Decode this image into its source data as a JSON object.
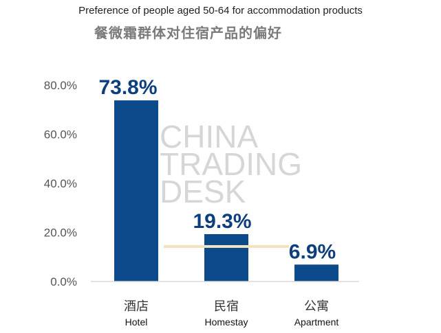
{
  "title": "Preference of people aged 50-64 for accommodation products",
  "subtitle": "餐微霜群体对住宿产品的偏好",
  "watermark": [
    "CHINA",
    "TRADING",
    "DESK"
  ],
  "colors": {
    "bar": "#0d4a8b",
    "label": "#0d3f7d",
    "baseline": "#d9d9d9",
    "accent_line": "#f3e2c0"
  },
  "chart_data": {
    "type": "bar",
    "title": "Preference of people aged 50-64 for accommodation products",
    "subtitle": "餐微霜群体对住宿产品的偏好",
    "categories": [
      "酒店",
      "民宿",
      "公寓"
    ],
    "categories_en": [
      "Hotel",
      "Homestay",
      "Apartment"
    ],
    "values": [
      73.8,
      19.3,
      6.9
    ],
    "value_labels": [
      "73.8%",
      "19.3%",
      "6.9%"
    ],
    "ylim": [
      0,
      80
    ],
    "yticks": [
      0,
      20,
      40,
      60,
      80
    ],
    "ytick_labels": [
      "0.0%",
      "20.0%",
      "40.0%",
      "60.0%",
      "80.0%"
    ],
    "xlabel": "",
    "ylabel": "",
    "grid": false,
    "legend": "none"
  }
}
